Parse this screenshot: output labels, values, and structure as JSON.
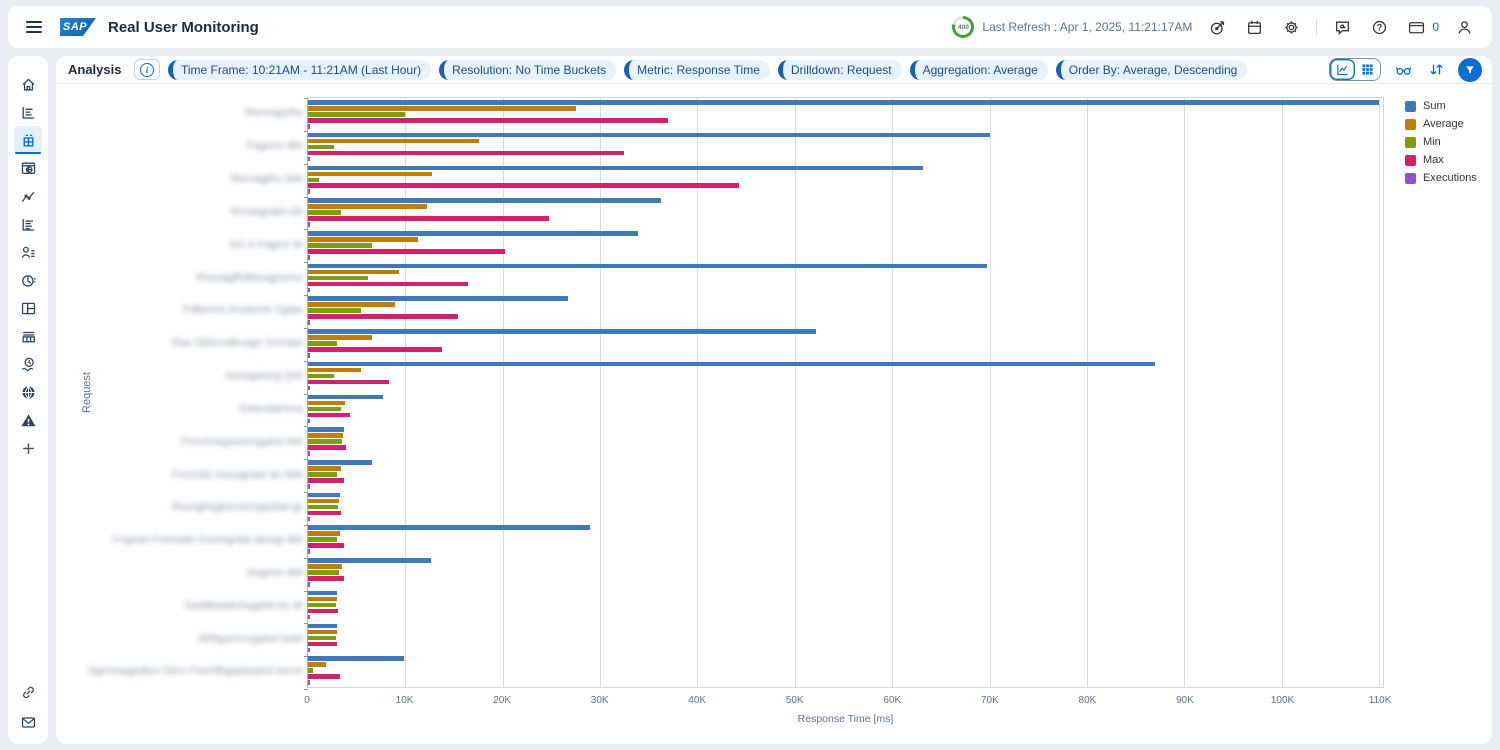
{
  "header": {
    "logo": "SAP",
    "app_title": "Real User Monitoring",
    "refresh_countdown": "400",
    "last_refresh": "Last Refresh : Apr 1, 2025, 11:21:17AM",
    "message_count": "0",
    "icons": [
      "target-icon",
      "calendar-icon",
      "settings-gear-icon",
      "feedback-chat-icon",
      "help-icon",
      "messages-card-icon",
      "profile-person-icon"
    ]
  },
  "toolbar": {
    "title": "Analysis",
    "chips": [
      "Time Frame: 10:21AM - 11:21AM (Last Hour)",
      "Resolution: No Time Buckets",
      "Metric: Response Time",
      "Drilldown: Request",
      "Aggregation: Average",
      "Order By: Average, Descending"
    ],
    "view_switch": [
      "chart-view",
      "table-view"
    ],
    "right_icons": [
      "glasses-view-icon",
      "sort-icon",
      "filter-icon"
    ]
  },
  "sidebar": {
    "items": [
      "home-icon",
      "report-rows-icon",
      "data-grid-icon",
      "web-page-icon",
      "trend-chart-icon",
      "chart-rows-icon",
      "user-list-icon",
      "gauge-chart-icon",
      "layout-icon",
      "table-view-icon",
      "history-clock-icon",
      "globe-icon",
      "alerts-warning-icon",
      "add-plus-icon"
    ],
    "bottom_items": [
      "link-icon",
      "mail-icon"
    ],
    "selected_index": 2
  },
  "chart_data": {
    "type": "bar",
    "orientation": "horizontal-grouped",
    "title": "",
    "xlabel": "Response Time [ms]",
    "ylabel": "Request",
    "grid": true,
    "legend_position": "top-right",
    "x_ticks": [
      "0",
      "10K",
      "20K",
      "30K",
      "40K",
      "50K",
      "60K",
      "70K",
      "80K",
      "90K",
      "100K",
      "110K"
    ],
    "x_tick_values": [
      0,
      10000,
      20000,
      30000,
      40000,
      50000,
      60000,
      70000,
      80000,
      90000,
      100000,
      110000
    ],
    "xmax_plot": 110400,
    "series": [
      {
        "name": "Sum",
        "color": "#4178b8"
      },
      {
        "name": "Average",
        "color": "#bf7d0e"
      },
      {
        "name": "Min",
        "color": "#7d9d0b"
      },
      {
        "name": "Max",
        "color": "#d4216d"
      },
      {
        "name": "Executions",
        "color": "#9050d6"
      }
    ],
    "labels_redacted": true,
    "rows": [
      {
        "label_placeholder": "Renvagcths",
        "values": [
          110000,
          27500,
          10000,
          37000,
          250
        ]
      },
      {
        "label_placeholder": "Fagnmi dW",
        "values": [
          70000,
          17600,
          2700,
          32500,
          250
        ]
      },
      {
        "label_placeholder": "Rernagihs GW",
        "values": [
          63200,
          12700,
          1100,
          44300,
          250
        ]
      },
      {
        "label_placeholder": "Rnmognahi dA",
        "values": [
          36300,
          12200,
          3400,
          24800,
          250
        ]
      },
      {
        "label_placeholder": "KG b Fagnrt W",
        "values": [
          33900,
          11300,
          6600,
          20200,
          250
        ]
      },
      {
        "label_placeholder": "Rssnagfhdbtvagnems",
        "values": [
          69700,
          9300,
          6200,
          16400,
          250
        ]
      },
      {
        "label_placeholder": "Fdltenmi Arsaemb Sgiae",
        "values": [
          26700,
          8900,
          5400,
          15400,
          250
        ]
      },
      {
        "label_placeholder": "Ras Gbhcndkvagn Snmlae",
        "values": [
          52200,
          6600,
          3000,
          13800,
          250
        ]
      },
      {
        "label_placeholder": "Asnagieurg QW",
        "values": [
          87000,
          5400,
          2700,
          8300,
          250
        ]
      },
      {
        "label_placeholder": "Sstexdatrsna",
        "values": [
          7700,
          3800,
          3400,
          4300,
          250
        ]
      },
      {
        "label_placeholder": "Fmrchregswvirsgahd AW",
        "values": [
          3700,
          3600,
          3500,
          3900,
          250
        ]
      },
      {
        "label_placeholder": "Fnmrobi Gscsgnasi bn NW",
        "values": [
          6600,
          3400,
          3000,
          3700,
          250
        ]
      },
      {
        "label_placeholder": "Rssxghsgbsvsnmgsahd gs",
        "values": [
          3300,
          3200,
          3100,
          3400,
          250
        ]
      },
      {
        "label_placeholder": "Fngrsei Fnmsabi Gxsmgnbd atnsgi dW",
        "values": [
          29000,
          3300,
          3000,
          3700,
          250
        ]
      },
      {
        "label_placeholder": "Asgmni dW",
        "values": [
          12600,
          3500,
          3200,
          3700,
          250
        ]
      },
      {
        "label_placeholder": "Ssddbsadchvgahd bs W",
        "values": [
          3000,
          3000,
          2900,
          3100,
          250
        ]
      },
      {
        "label_placeholder": "Wfdgsmrxsgahd bsW",
        "values": [
          3000,
          3000,
          2900,
          3000,
          250
        ]
      },
      {
        "label_placeholder": "Sgnmsagsdtxs Gbrs Fwchfbgqsbsahd bsnm",
        "values": [
          9900,
          1800,
          500,
          3300,
          250
        ]
      }
    ]
  }
}
